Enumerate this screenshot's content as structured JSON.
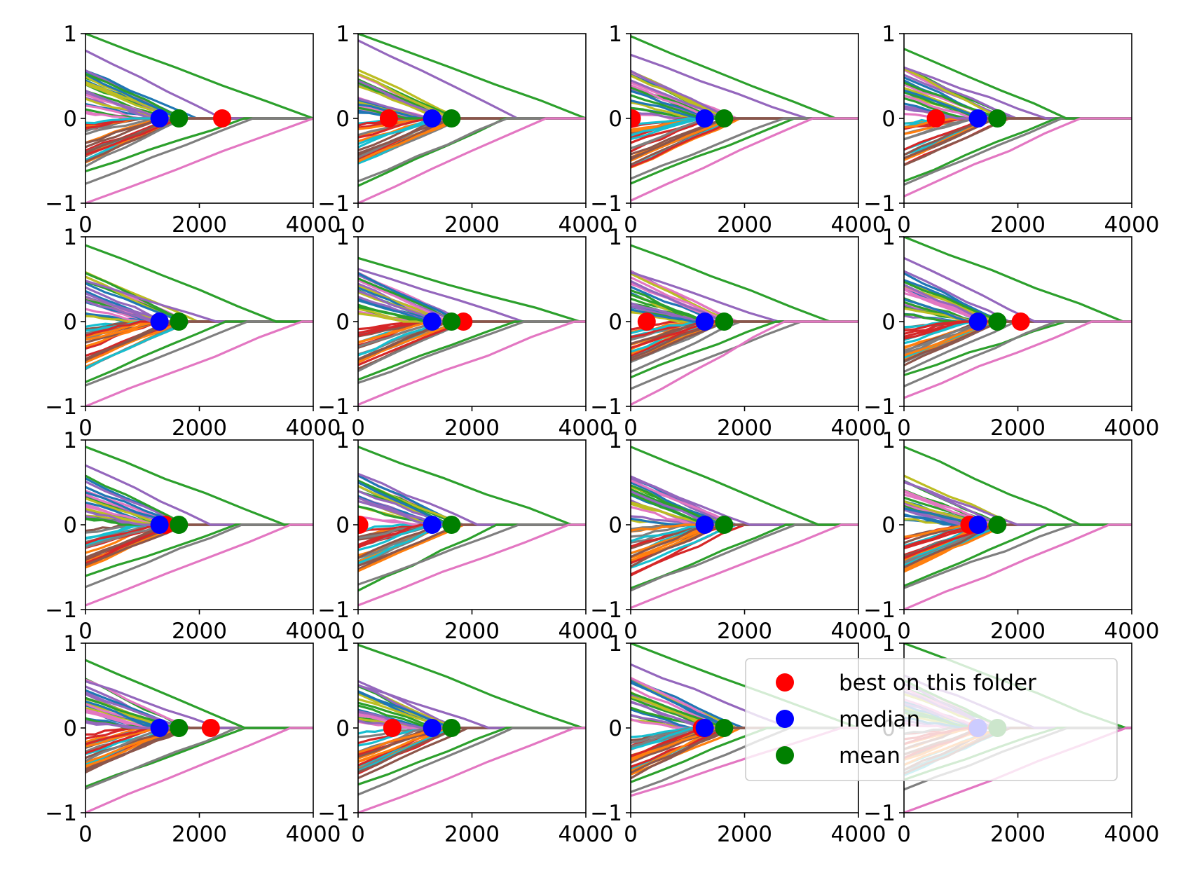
{
  "figure": {
    "rows": 4,
    "cols": 4,
    "background": "#ffffff"
  },
  "palette": [
    "#1f77b4",
    "#ff7f0e",
    "#2ca02c",
    "#d62728",
    "#9467bd",
    "#8c564b",
    "#e377c2",
    "#7f7f7f",
    "#bcbd22",
    "#17becf"
  ],
  "axes_common": {
    "xlim": [
      0,
      4000
    ],
    "ylim": [
      -1,
      1
    ],
    "xticks": [
      0,
      2000,
      4000
    ],
    "yticks": [
      -1,
      0,
      1
    ],
    "xtick_labels": [
      "0",
      "2000",
      "4000"
    ],
    "ytick_labels": [
      "−1",
      "0",
      "1"
    ],
    "grid": false
  },
  "legend": {
    "placement": "lower-right (last row, overlapping 3rd and 4th panels)",
    "entries": [
      {
        "label": "best on this folder",
        "color": "#ff0000",
        "marker": "circle"
      },
      {
        "label": "median",
        "color": "#0000ff",
        "marker": "circle"
      },
      {
        "label": "mean",
        "color": "#008000",
        "marker": "circle"
      }
    ]
  },
  "chart_data": [
    {
      "type": "line",
      "panel": 1,
      "xlim": [
        0,
        4000
      ],
      "ylim": [
        -1,
        1
      ],
      "markers": {
        "best": 2400,
        "median": 1300,
        "mean": 1640
      },
      "envelope": {
        "top_start": 1.0,
        "top_end_x": 4000,
        "bottom_start": -1.0,
        "bottom_end_x": 4000,
        "upper_line2_start": 0.8,
        "upper_line2_end_x": 2400
      }
    },
    {
      "type": "line",
      "panel": 2,
      "xlim": [
        0,
        4000
      ],
      "ylim": [
        -1,
        1
      ],
      "markers": {
        "best": 540,
        "median": 1300,
        "mean": 1640
      },
      "envelope": {
        "top_start": 1.0,
        "top_end_x": 4000,
        "bottom_start": -1.0,
        "bottom_end_x": 3300,
        "upper_line2_start": 0.92,
        "upper_line2_end_x": 2800
      }
    },
    {
      "type": "line",
      "panel": 3,
      "xlim": [
        0,
        4000
      ],
      "ylim": [
        -1,
        1
      ],
      "markers": {
        "best": 20,
        "median": 1300,
        "mean": 1640
      },
      "envelope": {
        "top_start": 0.97,
        "top_end_x": 3600,
        "bottom_start": -0.97,
        "bottom_end_x": 3200,
        "upper_line2_start": 0.75,
        "upper_line2_end_x": 3100
      }
    },
    {
      "type": "line",
      "panel": 4,
      "xlim": [
        0,
        4000
      ],
      "ylim": [
        -1,
        1
      ],
      "markers": {
        "best": 560,
        "median": 1300,
        "mean": 1640
      },
      "envelope": {
        "top_start": 0.82,
        "top_end_x": 2850,
        "bottom_start": -0.92,
        "bottom_end_x": 3100,
        "upper_line2_start": 0.6,
        "upper_line2_end_x": 2500
      }
    },
    {
      "type": "line",
      "panel": 5,
      "xlim": [
        0,
        4000
      ],
      "ylim": [
        -1,
        1
      ],
      "markers": {
        "best": 1300,
        "median": 1300,
        "mean": 1640
      },
      "envelope": {
        "top_start": 0.9,
        "top_end_x": 3350,
        "bottom_start": -1.0,
        "bottom_end_x": 3800,
        "upper_line2_start": 0.48,
        "upper_line2_end_x": 2300
      }
    },
    {
      "type": "line",
      "panel": 6,
      "xlim": [
        0,
        4000
      ],
      "ylim": [
        -1,
        1
      ],
      "markers": {
        "best": 1850,
        "median": 1300,
        "mean": 1640
      },
      "envelope": {
        "top_start": 0.75,
        "top_end_x": 3900,
        "bottom_start": -0.98,
        "bottom_end_x": 3800,
        "upper_line2_start": 0.62,
        "upper_line2_end_x": 2900
      }
    },
    {
      "type": "line",
      "panel": 7,
      "xlim": [
        0,
        4000
      ],
      "ylim": [
        -1,
        1
      ],
      "markers": {
        "best": 280,
        "median": 1300,
        "mean": 1640
      },
      "envelope": {
        "top_start": 0.9,
        "top_end_x": 3500,
        "bottom_start": -0.98,
        "bottom_end_x": 2700,
        "upper_line2_start": 0.58,
        "upper_line2_end_x": 2600
      }
    },
    {
      "type": "line",
      "panel": 8,
      "xlim": [
        0,
        4000
      ],
      "ylim": [
        -1,
        1
      ],
      "markers": {
        "best": 2050,
        "median": 1300,
        "mean": 1640
      },
      "envelope": {
        "top_start": 1.0,
        "top_end_x": 3850,
        "bottom_start": -0.9,
        "bottom_end_x": 3300,
        "upper_line2_start": 0.75,
        "upper_line2_end_x": 2300
      }
    },
    {
      "type": "line",
      "panel": 9,
      "xlim": [
        0,
        4000
      ],
      "ylim": [
        -1,
        1
      ],
      "markers": {
        "best": 1400,
        "median": 1300,
        "mean": 1640
      },
      "envelope": {
        "top_start": 0.92,
        "top_end_x": 3500,
        "bottom_start": -0.95,
        "bottom_end_x": 3600,
        "upper_line2_start": 0.7,
        "upper_line2_end_x": 2200
      }
    },
    {
      "type": "line",
      "panel": 10,
      "xlim": [
        0,
        4000
      ],
      "ylim": [
        -1,
        1
      ],
      "markers": {
        "best": 20,
        "median": 1300,
        "mean": 1640
      },
      "envelope": {
        "top_start": 0.92,
        "top_end_x": 3750,
        "bottom_start": -0.95,
        "bottom_end_x": 3700,
        "upper_line2_start": 0.6,
        "upper_line2_end_x": 2100
      }
    },
    {
      "type": "line",
      "panel": 11,
      "xlim": [
        0,
        4000
      ],
      "ylim": [
        -1,
        1
      ],
      "markers": {
        "best": 1300,
        "median": 1300,
        "mean": 1640
      },
      "envelope": {
        "top_start": 0.92,
        "top_end_x": 3300,
        "bottom_start": -0.98,
        "bottom_end_x": 3700,
        "upper_line2_start": 0.55,
        "upper_line2_end_x": 2100
      }
    },
    {
      "type": "line",
      "panel": 12,
      "xlim": [
        0,
        4000
      ],
      "ylim": [
        -1,
        1
      ],
      "markers": {
        "best": 1150,
        "median": 1300,
        "mean": 1640
      },
      "envelope": {
        "top_start": 0.92,
        "top_end_x": 3100,
        "bottom_start": -1.0,
        "bottom_end_x": 3600,
        "upper_line2_start": 0.5,
        "upper_line2_end_x": 2000
      }
    },
    {
      "type": "line",
      "panel": 13,
      "xlim": [
        0,
        4000
      ],
      "ylim": [
        -1,
        1
      ],
      "markers": {
        "best": 2200,
        "median": 1300,
        "mean": 1640
      },
      "envelope": {
        "top_start": 0.8,
        "top_end_x": 2800,
        "bottom_start": -1.0,
        "bottom_end_x": 3600,
        "upper_line2_start": 0.55,
        "upper_line2_end_x": 2350
      }
    },
    {
      "type": "line",
      "panel": 14,
      "xlim": [
        0,
        4000
      ],
      "ylim": [
        -1,
        1
      ],
      "markers": {
        "best": 600,
        "median": 1300,
        "mean": 1640
      },
      "envelope": {
        "top_start": 0.98,
        "top_end_x": 3950,
        "bottom_start": -1.0,
        "bottom_end_x": 3800,
        "upper_line2_start": 0.5,
        "upper_line2_end_x": 2300
      }
    },
    {
      "type": "line",
      "panel": 15,
      "xlim": [
        0,
        4000
      ],
      "ylim": [
        -1,
        1
      ],
      "markers": {
        "best": 1250,
        "median": 1300,
        "mean": 1640
      },
      "envelope": {
        "top_start": 1.0,
        "top_end_x": 4000,
        "bottom_start": -0.8,
        "bottom_end_x": 3700,
        "upper_line2_start": 0.75,
        "upper_line2_end_x": 2800
      }
    },
    {
      "type": "line",
      "panel": 16,
      "xlim": [
        0,
        4000
      ],
      "ylim": [
        -1,
        1
      ],
      "markers": {
        "best": 1280,
        "median": 1300,
        "mean": 1640
      },
      "envelope": {
        "top_start": 1.0,
        "top_end_x": 3900,
        "bottom_start": -1.0,
        "bottom_end_x": 3900,
        "upper_line2_start": 0.62,
        "upper_line2_end_x": 2300
      }
    }
  ]
}
